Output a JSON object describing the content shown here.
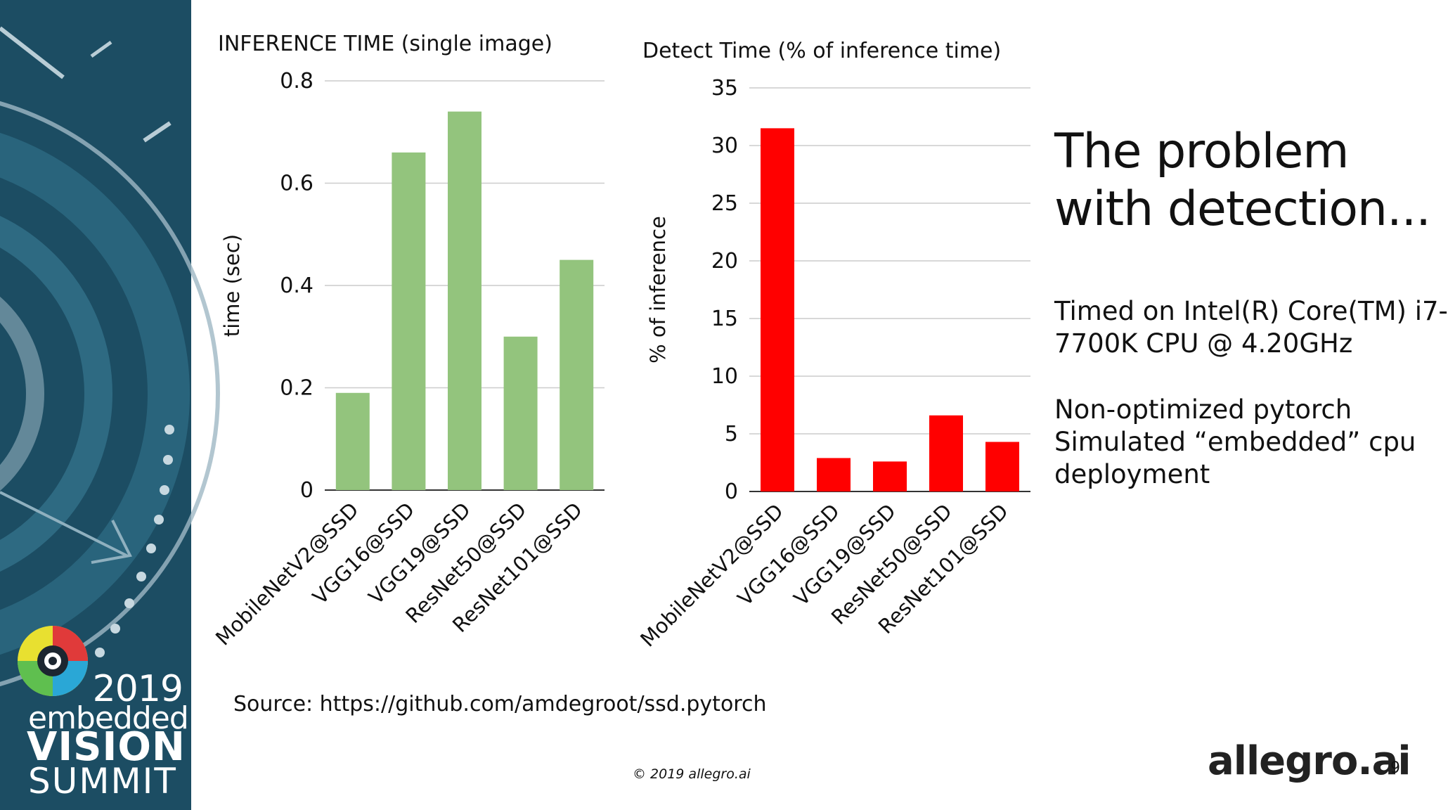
{
  "sidebar": {
    "year": "2019",
    "event_line1": "embedded",
    "event_line2": "VISION",
    "event_line3": "SUMMIT"
  },
  "chart_data": [
    {
      "type": "bar",
      "title": "INFERENCE TIME (single image)",
      "xlabel": "",
      "ylabel": "time (sec)",
      "categories": [
        "MobileNetV2@SSD",
        "VGG16@SSD",
        "VGG19@SSD",
        "ResNet50@SSD",
        "ResNet101@SSD"
      ],
      "values": [
        0.19,
        0.66,
        0.74,
        0.3,
        0.45
      ],
      "ylim": [
        0,
        0.8
      ],
      "yticks": [
        "0",
        "0.2",
        "0.4",
        "0.6",
        "0.8"
      ],
      "color": "#93c47d",
      "grid": true
    },
    {
      "type": "bar",
      "title": "Detect Time (% of inference time)",
      "xlabel": "",
      "ylabel": "% of inference",
      "categories": [
        "MobileNetV2@SSD",
        "VGG16@SSD",
        "VGG19@SSD",
        "ResNet50@SSD",
        "ResNet101@SSD"
      ],
      "values": [
        31.5,
        2.9,
        2.6,
        6.6,
        4.3
      ],
      "ylim": [
        0,
        35
      ],
      "yticks": [
        "0",
        "5",
        "10",
        "15",
        "20",
        "25",
        "30",
        "35"
      ],
      "color": "#ff0000",
      "grid": true
    }
  ],
  "heading": {
    "line1": "The problem",
    "line2": "with detection..."
  },
  "notes": {
    "cpu_line1": "Timed on Intel(R) Core(TM) i7-",
    "cpu_line2": "7700K CPU @ 4.20GHz",
    "deploy_line1": "Non-optimized pytorch",
    "deploy_line2": "Simulated “embedded” cpu",
    "deploy_line3": "deployment"
  },
  "source": "Source: https://github.com/amdegroot/ssd.pytorch",
  "copyright": "© 2019 allegro.ai",
  "logo": "allegro.ai",
  "page_number": "9"
}
